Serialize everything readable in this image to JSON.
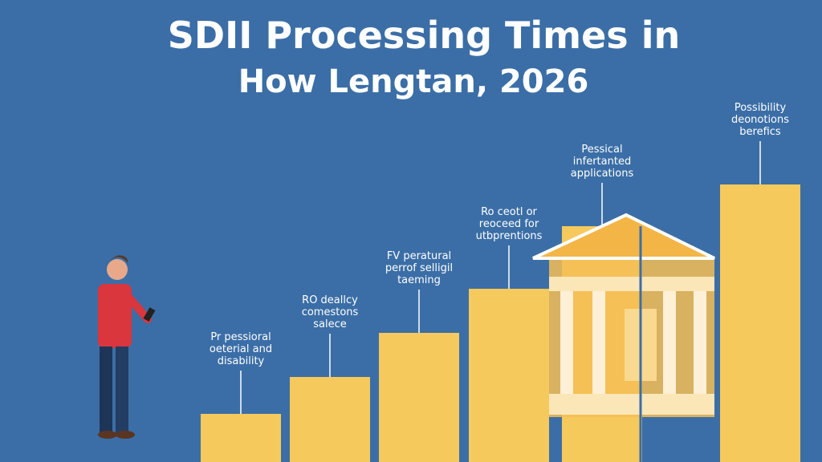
{
  "chart_data": {
    "type": "bar",
    "title_lines": [
      "SDII Processing Times in",
      "How Lengtan, 2026"
    ],
    "categories": [
      [
        "Pr pessioral",
        "oeterial and",
        "disability"
      ],
      [
        "RO deallcy",
        "comestons",
        "salece"
      ],
      [
        "FV peratural",
        "perrof selligil",
        "taeming"
      ],
      [
        "Ro ceotl or",
        "reoceed for",
        "utbprentions"
      ],
      [
        "Pessical",
        "infertanted",
        "applications"
      ],
      [
        "Possibility",
        "deonotions",
        "berefics"
      ]
    ],
    "values": [
      60,
      106,
      161,
      216,
      294,
      346
    ],
    "color": "#f6c95c"
  }
}
